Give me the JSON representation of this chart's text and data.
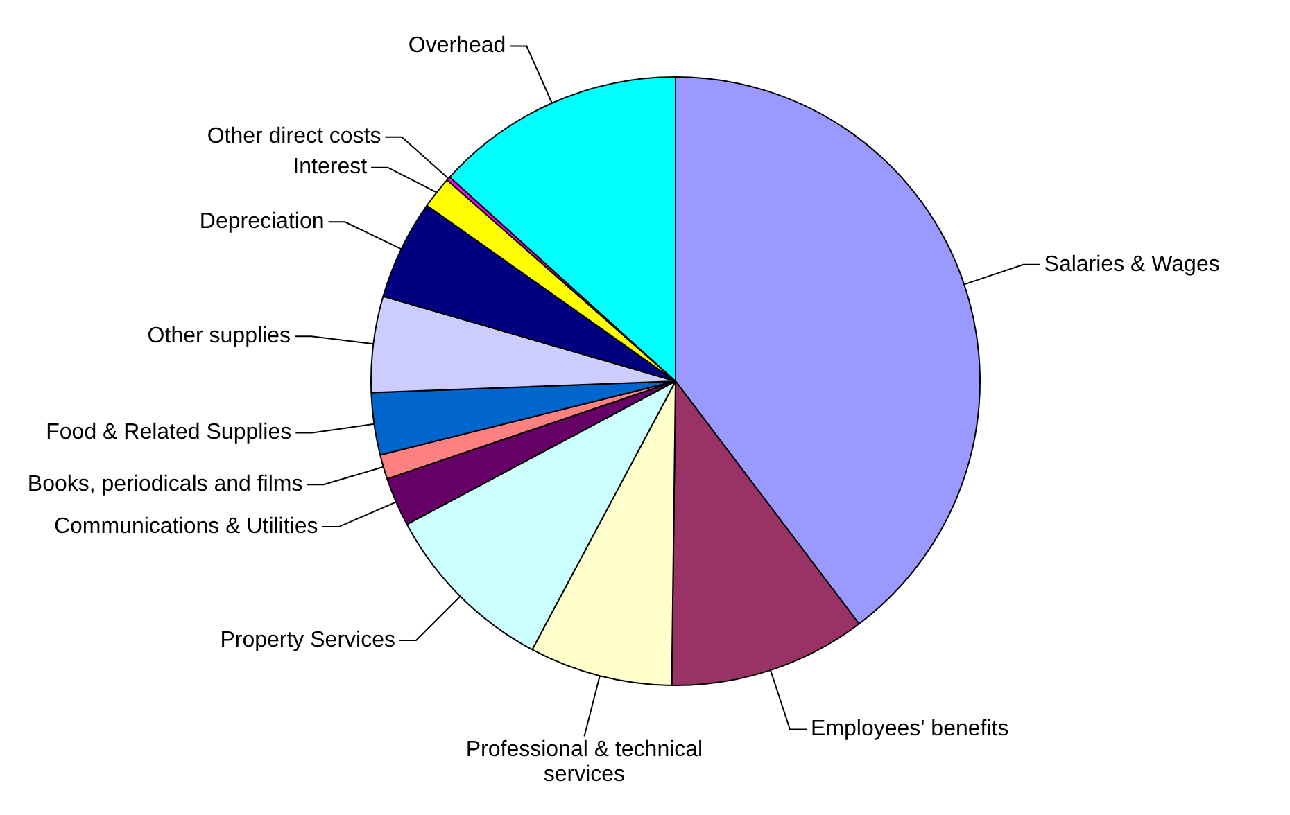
{
  "chart_data": {
    "type": "pie",
    "categories": [
      "Salaries & Wages",
      "Employees' benefits",
      "Professional & technical services",
      "Property Services",
      "Communications & Utilities",
      "Books, periodicals and films",
      "Food & Related Supplies",
      "Other supplies",
      "Depreciation",
      "Interest",
      "Other direct costs",
      "Overhead"
    ],
    "values": [
      39.7,
      10.5,
      7.6,
      9.4,
      2.6,
      1.3,
      3.3,
      5.1,
      5.3,
      1.7,
      0.2,
      13.3
    ],
    "colors": [
      "#9999ff",
      "#993366",
      "#ffffcc",
      "#ccffff",
      "#660066",
      "#ff8080",
      "#0066cc",
      "#ccccff",
      "#000080",
      "#ffff00",
      "#ff00ff",
      "#00ffff"
    ],
    "legend": false
  }
}
